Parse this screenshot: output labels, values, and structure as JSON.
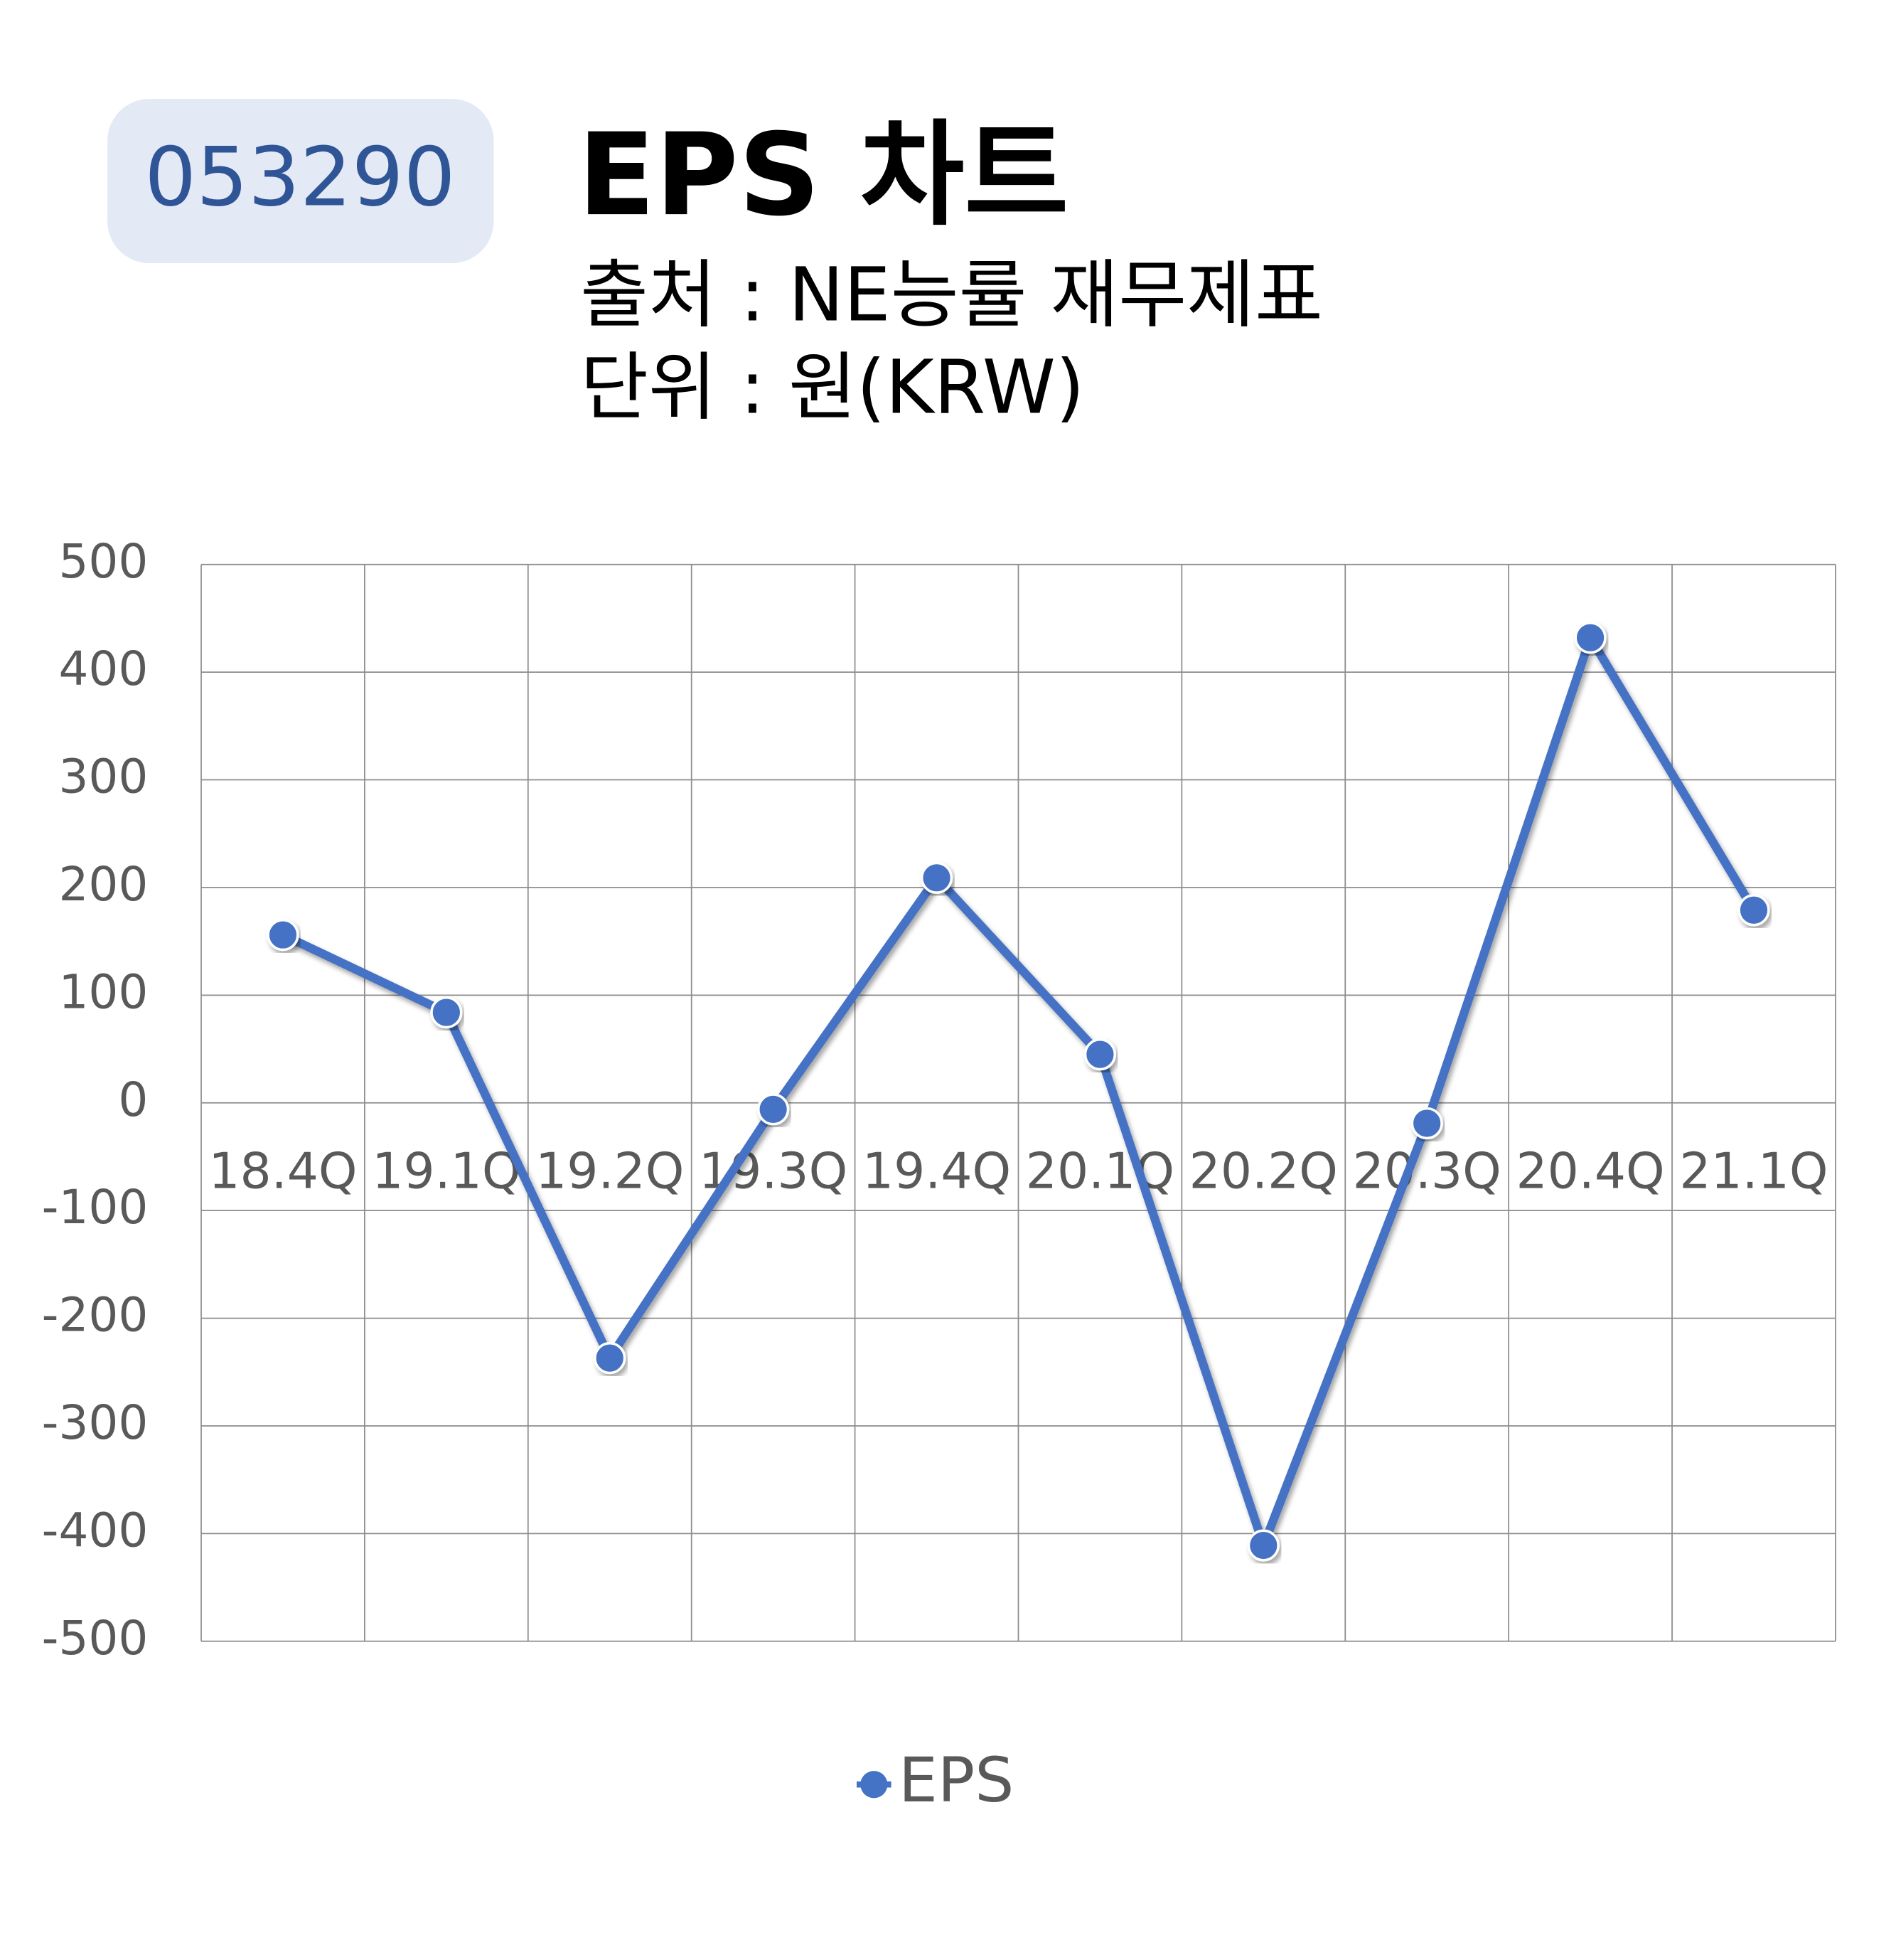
{
  "header": {
    "code": "053290",
    "title": "EPS 차트",
    "source": "출처 : NE능률 재무제표",
    "unit": "단위 : 원(KRW)"
  },
  "chart_data": {
    "type": "line",
    "categories": [
      "18.4Q",
      "19.1Q",
      "19.2Q",
      "19.3Q",
      "19.4Q",
      "20.1Q",
      "20.2Q",
      "20.3Q",
      "20.4Q",
      "21.1Q"
    ],
    "series": [
      {
        "name": "EPS",
        "color": "#4472c4",
        "values": [
          156,
          84,
          -237,
          -6,
          209,
          45,
          -411,
          -19,
          432,
          179
        ]
      }
    ],
    "ylim": [
      -500,
      500
    ],
    "yticks": [
      -500,
      -400,
      -300,
      -200,
      -100,
      0,
      100,
      200,
      300,
      400,
      500
    ],
    "grid": true
  }
}
